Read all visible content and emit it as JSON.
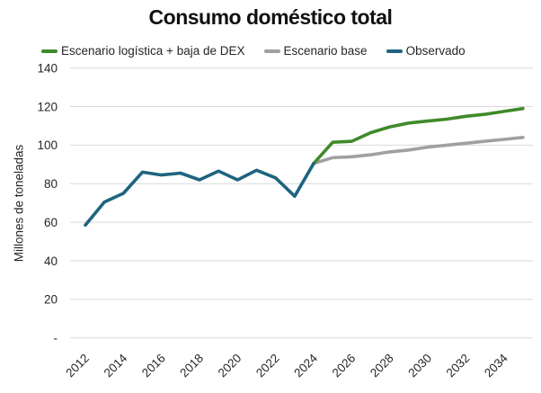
{
  "chart_data": {
    "type": "line",
    "title": "Consumo doméstico total",
    "ylabel": "Millones de toneladas",
    "xlabel": "",
    "grid": true,
    "legend_position": "top",
    "ylim": [
      0,
      140
    ],
    "xlim": [
      2011,
      2036
    ],
    "grid_color": "#d9d9d9",
    "text_color": "#262626",
    "y_ticks": [
      {
        "value": 140,
        "label": "140"
      },
      {
        "value": 120,
        "label": "120"
      },
      {
        "value": 100,
        "label": "100"
      },
      {
        "value": 80,
        "label": "80"
      },
      {
        "value": 60,
        "label": "60"
      },
      {
        "value": 40,
        "label": "40"
      },
      {
        "value": 20,
        "label": "20"
      },
      {
        "value": 0,
        "label": "-"
      }
    ],
    "x_ticks": [
      2012,
      2014,
      2016,
      2018,
      2020,
      2022,
      2024,
      2026,
      2028,
      2030,
      2032,
      2034
    ],
    "series": [
      {
        "name": "Escenario logística + baja de DEX",
        "color": "#3f8a29",
        "x": [
          2024,
          2025,
          2026,
          2027,
          2028,
          2029,
          2030,
          2031,
          2032,
          2033,
          2034,
          2035
        ],
        "values": [
          90.5,
          101.5,
          102,
          106.5,
          109.5,
          111.5,
          112.5,
          113.5,
          115,
          116,
          117.5,
          119
        ]
      },
      {
        "name": "Escenario base",
        "color": "#a0a0a0",
        "x": [
          2024,
          2025,
          2026,
          2027,
          2028,
          2029,
          2030,
          2031,
          2032,
          2033,
          2034,
          2035
        ],
        "values": [
          90.5,
          93.5,
          94,
          95,
          96.5,
          97.5,
          99,
          100,
          101,
          102,
          103,
          104
        ]
      },
      {
        "name": "Observado",
        "color": "#1d647f",
        "x": [
          2012,
          2013,
          2014,
          2015,
          2016,
          2017,
          2018,
          2019,
          2020,
          2021,
          2022,
          2023,
          2024
        ],
        "values": [
          58.5,
          70.5,
          75,
          86,
          84.5,
          85.5,
          82,
          86.5,
          82,
          87,
          83,
          73.5,
          90.5
        ]
      }
    ]
  }
}
